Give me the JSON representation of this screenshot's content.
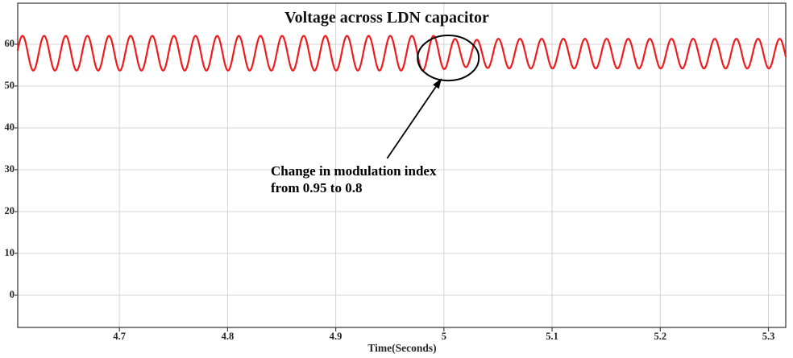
{
  "figure": {
    "title": "Voltage across LDN capacitor",
    "xlabel": "Time(Seconds)",
    "annotation_line1": "Change in modulation index",
    "annotation_line2": "from 0.95 to 0.8"
  },
  "chart_data": {
    "type": "line",
    "title": "Voltage across LDN capacitor",
    "xlabel": "Time(Seconds)",
    "ylabel": "",
    "xlim": [
      4.606,
      5.316
    ],
    "ylim": [
      -7.7,
      69.8
    ],
    "x_ticks": [
      4.7,
      4.8,
      4.9,
      5,
      5.1,
      5.2,
      5.3
    ],
    "x_tick_labels": [
      "4.7",
      "4.8",
      "4.9",
      "5",
      "5.1",
      "5.2",
      "5.3"
    ],
    "y_ticks": [
      0,
      10,
      20,
      30,
      40,
      50,
      60
    ],
    "y_tick_labels": [
      "0",
      "10",
      "20",
      "30",
      "40",
      "50",
      "60"
    ],
    "grid": true,
    "legend": "none",
    "colors": {
      "series": "#ee1c1c",
      "grid": "#d4d4d4",
      "axis": "#3f3f3f",
      "tick_text": "#262626",
      "annotation": "#000000",
      "title_text": "#111111"
    },
    "series": [
      {
        "name": "Voltage across LDN capacitor",
        "waveform": "sine_ripple",
        "frequency_hz": 50,
        "peak_time_ref_s": 4.7104,
        "mean_V_before": 57.85,
        "amplitude_V_before": 4.15,
        "mean_V_after": 57.75,
        "amplitude_V_after": 3.55,
        "transition_start_s": 4.992,
        "transition_end_s": 5.045,
        "transition_dip_V": 0.55,
        "modulation_index_before": 0.95,
        "modulation_index_after": 0.8
      }
    ],
    "annotations": [
      {
        "kind": "ellipse",
        "center_t": 5.004,
        "center_v": 56.7,
        "radius_t": 0.0283,
        "radius_v": 5.4
      },
      {
        "kind": "arrow",
        "tail_t": 4.9475,
        "tail_v": 32.7,
        "head_t": 4.998,
        "head_v": 51.9
      },
      {
        "kind": "text",
        "text": "Change in modulation index\nfrom 0.95 to 0.8",
        "anchor_t": 4.84,
        "anchor_v": 31.1
      }
    ]
  }
}
